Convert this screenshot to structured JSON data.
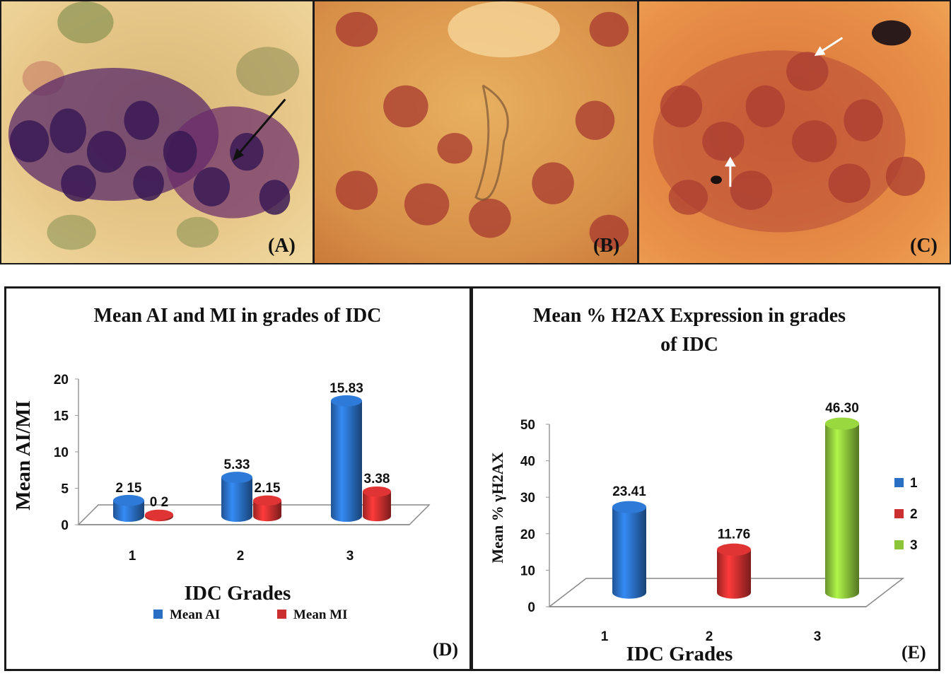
{
  "panels": {
    "a_label": "(A)",
    "b_label": "(B)",
    "c_label": "(C)",
    "d_label": "(D)",
    "e_label": "(E)"
  },
  "colors": {
    "blue": "#2a6fc4",
    "red": "#cc2f2f",
    "green": "#8cc43a"
  },
  "chart_data": [
    {
      "type": "bar",
      "title": "Mean AI and MI in grades of IDC",
      "xlabel": "IDC Grades",
      "ylabel": "Mean AI/MI",
      "categories": [
        "1",
        "2",
        "3"
      ],
      "ylim": [
        0,
        20
      ],
      "yticks": [
        "0",
        "5",
        "10",
        "15",
        "20"
      ],
      "series": [
        {
          "name": "Mean AI",
          "values": [
            2.15,
            5.33,
            15.83
          ],
          "labels": [
            "2 15",
            "5.33",
            "15.83"
          ],
          "color": "#2a6fc4"
        },
        {
          "name": "Mean MI",
          "values": [
            0.2,
            2.15,
            3.38
          ],
          "labels": [
            "0 2",
            "2.15",
            "3.38"
          ],
          "color": "#cc2f2f"
        }
      ],
      "legend": "bottom"
    },
    {
      "type": "bar",
      "title": "Mean % H2AX Expression in grades of IDC",
      "title_lines": [
        "Mean % H2AX Expression in grades",
        "of IDC"
      ],
      "xlabel": "IDC Grades",
      "ylabel": "Mean % γH2AX",
      "categories": [
        "1",
        "2",
        "3"
      ],
      "ylim": [
        0,
        50
      ],
      "yticks": [
        "0",
        "10",
        "20",
        "30",
        "40",
        "50"
      ],
      "values": [
        23.41,
        11.76,
        46.3
      ],
      "labels": [
        "23.41",
        "11.76",
        "46.30"
      ],
      "legend_entries": [
        "1",
        "2",
        "3"
      ],
      "colors": [
        "#2a6fc4",
        "#cc2f2f",
        "#8cc43a"
      ],
      "legend": "right"
    }
  ]
}
